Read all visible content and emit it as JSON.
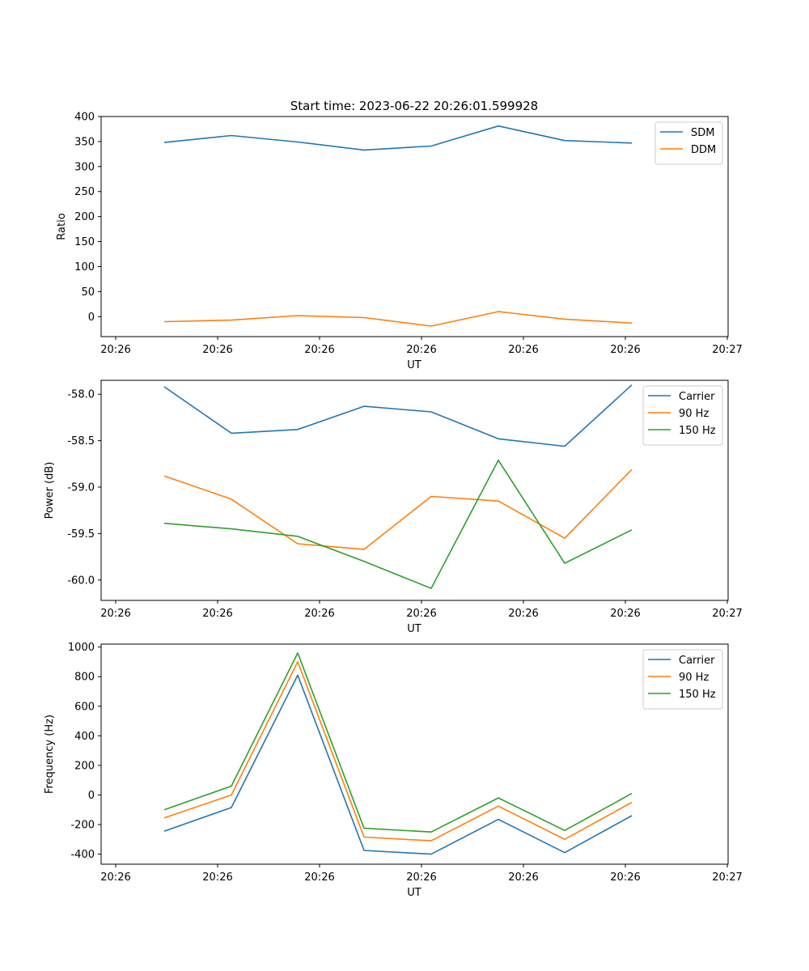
{
  "figure": {
    "title": "Start time: 2023-06-22 20:26:01.599928"
  },
  "chart_data": [
    {
      "type": "line",
      "title": "Start time: 2023-06-22 20:26:01.599928",
      "xlabel": "UT",
      "ylabel": "Ratio",
      "x_tick_labels": [
        "20:26",
        "20:26",
        "20:26",
        "20:26",
        "20:26",
        "20:26",
        "20:27"
      ],
      "ylim": [
        -40,
        400
      ],
      "y_ticks": [
        0,
        50,
        100,
        150,
        200,
        250,
        300,
        350,
        400
      ],
      "y_tick_labels": [
        "0",
        "50",
        "100",
        "150",
        "200",
        "250",
        "300",
        "350",
        "400"
      ],
      "legend_position": "top-right",
      "grid": false,
      "series": [
        {
          "name": "SDM",
          "color": "#1f77b4",
          "values": [
            348,
            362,
            349,
            333,
            341,
            381,
            352,
            347
          ]
        },
        {
          "name": "DDM",
          "color": "#ff7f0e",
          "values": [
            -10,
            -7,
            2,
            -2,
            -19,
            10,
            -5,
            -13
          ]
        }
      ]
    },
    {
      "type": "line",
      "title": "",
      "xlabel": "UT",
      "ylabel": "Power (dB)",
      "x_tick_labels": [
        "20:26",
        "20:26",
        "20:26",
        "20:26",
        "20:26",
        "20:26",
        "20:27"
      ],
      "ylim": [
        -60.22,
        -57.85
      ],
      "y_ticks": [
        -60.0,
        -59.5,
        -59.0,
        -58.5,
        -58.0
      ],
      "y_tick_labels": [
        "-60.0",
        "-59.5",
        "-59.0",
        "-58.5",
        "-58.0"
      ],
      "legend_position": "top-right",
      "grid": false,
      "series": [
        {
          "name": "Carrier",
          "color": "#1f77b4",
          "values": [
            -57.92,
            -58.42,
            -58.38,
            -58.13,
            -58.19,
            -58.48,
            -58.56,
            -57.9
          ]
        },
        {
          "name": "90 Hz",
          "color": "#ff7f0e",
          "values": [
            -58.88,
            -59.13,
            -59.61,
            -59.67,
            -59.1,
            -59.15,
            -59.55,
            -58.81
          ]
        },
        {
          "name": "150 Hz",
          "color": "#2ca02c",
          "values": [
            -59.39,
            -59.45,
            -59.53,
            -59.8,
            -60.09,
            -58.71,
            -59.82,
            -59.46
          ]
        }
      ]
    },
    {
      "type": "line",
      "title": "",
      "xlabel": "UT",
      "ylabel": "Frequency (Hz)",
      "x_tick_labels": [
        "20:26",
        "20:26",
        "20:26",
        "20:26",
        "20:26",
        "20:26",
        "20:27"
      ],
      "ylim": [
        -468,
        1020
      ],
      "y_ticks": [
        -400,
        -200,
        0,
        200,
        400,
        600,
        800,
        1000
      ],
      "y_tick_labels": [
        "-400",
        "-200",
        "0",
        "200",
        "400",
        "600",
        "800",
        "1000"
      ],
      "legend_position": "top-right",
      "grid": false,
      "series": [
        {
          "name": "Carrier",
          "color": "#1f77b4",
          "values": [
            -245,
            -85,
            810,
            -375,
            -400,
            -165,
            -390,
            -140
          ]
        },
        {
          "name": "90 Hz",
          "color": "#ff7f0e",
          "values": [
            -155,
            0,
            900,
            -285,
            -310,
            -75,
            -300,
            -50
          ]
        },
        {
          "name": "150 Hz",
          "color": "#2ca02c",
          "values": [
            -100,
            60,
            960,
            -225,
            -250,
            -20,
            -240,
            10
          ]
        }
      ]
    }
  ]
}
